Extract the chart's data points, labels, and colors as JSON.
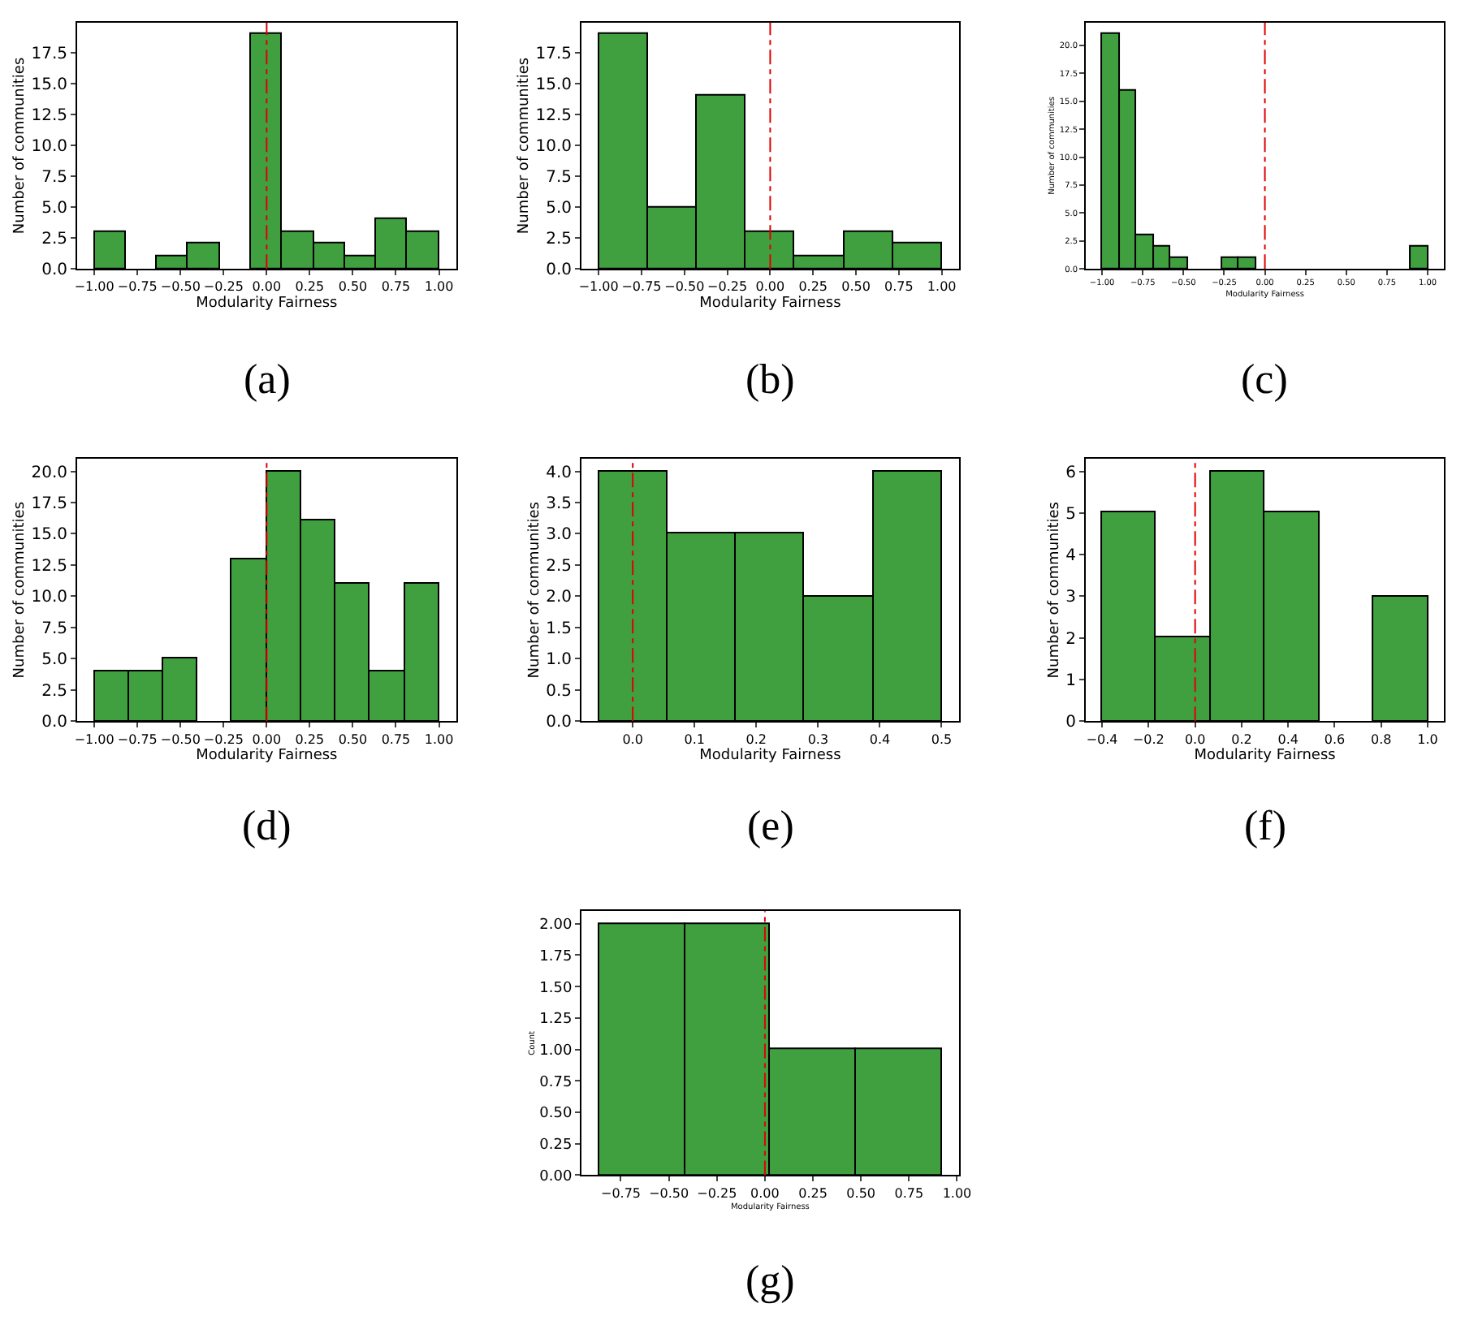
{
  "chart_data": [
    {
      "type": "histogram",
      "title": "(a)",
      "xlabel": "Modularity Fairness",
      "ylabel": "Number of communities",
      "color": "#40a040",
      "bins": [
        -1,
        -0.818,
        -0.636,
        -0.455,
        -0.273,
        -0.091,
        0.091,
        0.273,
        0.455,
        0.636,
        0.818,
        1
      ],
      "values": [
        3,
        0,
        1,
        2,
        0,
        19,
        3,
        2,
        1,
        4,
        3
      ],
      "xlim": [
        -1.1,
        1.1
      ],
      "ylim": [
        0,
        19.95
      ],
      "xticks": [
        {
          "value": -1,
          "label": "−1.00"
        },
        {
          "value": -0.75,
          "label": "−0.75"
        },
        {
          "value": -0.5,
          "label": "−0.50"
        },
        {
          "value": -0.25,
          "label": "−0.25"
        },
        {
          "value": 0,
          "label": "0.00"
        },
        {
          "value": 0.25,
          "label": "0.25"
        },
        {
          "value": 0.5,
          "label": "0.50"
        },
        {
          "value": 0.75,
          "label": "0.75"
        },
        {
          "value": 1,
          "label": "1.00"
        }
      ],
      "yticks": [
        {
          "value": 0,
          "label": "0.0"
        },
        2.5,
        {
          "value": 5,
          "label": "5.0"
        },
        7.5,
        {
          "value": 10,
          "label": "10.0"
        },
        12.5,
        {
          "value": 15,
          "label": "15.0"
        },
        17.5
      ],
      "ref_lines": [
        {
          "axis": "x",
          "value": 0,
          "color": "#e00000",
          "line_style": "dashed"
        }
      ]
    },
    {
      "type": "histogram",
      "title": "(b)",
      "xlabel": "Modularity Fairness",
      "ylabel": "Number of communities",
      "color": "#40a040",
      "bins": [
        -1,
        -0.714,
        -0.429,
        -0.143,
        0.143,
        0.429,
        0.714,
        1
      ],
      "values": [
        19,
        5,
        14,
        3,
        1,
        3,
        2
      ],
      "xlim": [
        -1.1,
        1.1
      ],
      "ylim": [
        0,
        19.95
      ],
      "xticks": [
        {
          "value": -1,
          "label": "−1.00"
        },
        {
          "value": -0.75,
          "label": "−0.75"
        },
        {
          "value": -0.5,
          "label": "−0.50"
        },
        {
          "value": -0.25,
          "label": "−0.25"
        },
        {
          "value": 0,
          "label": "0.00"
        },
        {
          "value": 0.25,
          "label": "0.25"
        },
        {
          "value": 0.5,
          "label": "0.50"
        },
        {
          "value": 0.75,
          "label": "0.75"
        },
        {
          "value": 1,
          "label": "1.00"
        }
      ],
      "yticks": [
        {
          "value": 0,
          "label": "0.0"
        },
        2.5,
        {
          "value": 5,
          "label": "5.0"
        },
        7.5,
        {
          "value": 10,
          "label": "10.0"
        },
        12.5,
        {
          "value": 15,
          "label": "15.0"
        },
        17.5
      ],
      "ref_lines": [
        {
          "axis": "x",
          "value": 0,
          "color": "#e00000",
          "line_style": "dashed"
        }
      ]
    },
    {
      "type": "histogram",
      "title": "(c)",
      "xlabel": "Modularity Fairness",
      "ylabel": "Number of communities",
      "color": "#40a040",
      "bins": [
        -1,
        -0.895,
        -0.789,
        -0.684,
        -0.579,
        -0.474,
        -0.368,
        -0.263,
        -0.158,
        -0.053,
        0.053,
        0.158,
        0.263,
        0.368,
        0.474,
        0.579,
        0.684,
        0.789,
        0.895,
        1
      ],
      "values": [
        21,
        16,
        3,
        2,
        1,
        0,
        0,
        1,
        1,
        0,
        0,
        0,
        0,
        0,
        0,
        0,
        0,
        0,
        2
      ],
      "xlim": [
        -1.1,
        1.1
      ],
      "ylim": [
        0,
        22.05
      ],
      "xticks": [
        {
          "value": -1,
          "label": "−1.00"
        },
        {
          "value": -0.75,
          "label": "−0.75"
        },
        {
          "value": -0.5,
          "label": "−0.50"
        },
        {
          "value": -0.25,
          "label": "−0.25"
        },
        {
          "value": 0,
          "label": "0.00"
        },
        {
          "value": 0.25,
          "label": "0.25"
        },
        {
          "value": 0.5,
          "label": "0.50"
        },
        {
          "value": 0.75,
          "label": "0.75"
        },
        {
          "value": 1,
          "label": "1.00"
        }
      ],
      "yticks": [
        {
          "value": 0,
          "label": "0.0"
        },
        2.5,
        {
          "value": 5,
          "label": "5.0"
        },
        7.5,
        {
          "value": 10,
          "label": "10.0"
        },
        12.5,
        {
          "value": 15,
          "label": "15.0"
        },
        17.5,
        {
          "value": 20,
          "label": "20.0"
        }
      ],
      "ref_lines": [
        {
          "axis": "x",
          "value": 0,
          "color": "#e00000",
          "line_style": "dashed"
        }
      ]
    },
    {
      "type": "histogram",
      "title": "(d)",
      "xlabel": "Modularity Fairness",
      "ylabel": "Number of communities",
      "color": "#40a040",
      "bins": [
        -1,
        -0.8,
        -0.6,
        -0.4,
        -0.2,
        0,
        0.2,
        0.4,
        0.6,
        0.8,
        1
      ],
      "values": [
        4,
        4,
        5,
        0,
        13,
        20,
        16,
        11,
        4,
        11
      ],
      "xlim": [
        -1.1,
        1.1
      ],
      "ylim": [
        0,
        21
      ],
      "xticks": [
        {
          "value": -1,
          "label": "−1.00"
        },
        {
          "value": -0.75,
          "label": "−0.75"
        },
        {
          "value": -0.5,
          "label": "−0.50"
        },
        {
          "value": -0.25,
          "label": "−0.25"
        },
        {
          "value": 0,
          "label": "0.00"
        },
        {
          "value": 0.25,
          "label": "0.25"
        },
        {
          "value": 0.5,
          "label": "0.50"
        },
        {
          "value": 0.75,
          "label": "0.75"
        },
        {
          "value": 1,
          "label": "1.00"
        }
      ],
      "yticks": [
        {
          "value": 0,
          "label": "0.0"
        },
        2.5,
        {
          "value": 5,
          "label": "5.0"
        },
        7.5,
        {
          "value": 10,
          "label": "10.0"
        },
        12.5,
        {
          "value": 15,
          "label": "15.0"
        },
        17.5,
        {
          "value": 20,
          "label": "20.0"
        }
      ],
      "ref_lines": [
        {
          "axis": "x",
          "value": 0,
          "color": "#e00000",
          "line_style": "dashed"
        }
      ]
    },
    {
      "type": "histogram",
      "title": "(e)",
      "xlabel": "Modularity Fairness",
      "ylabel": "Number of communities",
      "color": "#40a040",
      "bins": [
        -0.055,
        0.056,
        0.167,
        0.278,
        0.389,
        0.5
      ],
      "values": [
        4,
        3,
        3,
        2,
        4
      ],
      "xlim": [
        -0.083,
        0.528
      ],
      "ylim": [
        0,
        4.2
      ],
      "xticks": [
        {
          "value": 0,
          "label": "0.0"
        },
        0.1,
        0.2,
        0.3,
        0.4,
        0.5
      ],
      "yticks": [
        {
          "value": 0,
          "label": "0.0"
        },
        0.5,
        {
          "value": 1,
          "label": "1.0"
        },
        1.5,
        {
          "value": 2,
          "label": "2.0"
        },
        2.5,
        {
          "value": 3,
          "label": "3.0"
        },
        3.5,
        {
          "value": 4,
          "label": "4.0"
        }
      ],
      "ref_lines": [
        {
          "axis": "x",
          "value": 0,
          "color": "#e00000",
          "line_style": "dashed"
        }
      ]
    },
    {
      "type": "histogram",
      "title": "(f)",
      "xlabel": "Modularity Fairness",
      "ylabel": "Number of communities",
      "color": "#40a040",
      "bins": [
        -0.4,
        -0.167,
        0.067,
        0.3,
        0.533,
        0.767,
        1
      ],
      "values": [
        5,
        2,
        6,
        5,
        0,
        3
      ],
      "xlim": [
        -0.47,
        1.07
      ],
      "ylim": [
        0,
        6.3
      ],
      "xticks": [
        {
          "value": -0.4,
          "label": "−0.4"
        },
        {
          "value": -0.2,
          "label": "−0.2"
        },
        {
          "value": 0,
          "label": "0.0"
        },
        0.2,
        0.4,
        0.6,
        0.8,
        {
          "value": 1,
          "label": "1.0"
        }
      ],
      "yticks": [
        0,
        1,
        2,
        3,
        4,
        5,
        6
      ],
      "ref_lines": [
        {
          "axis": "x",
          "value": 0,
          "color": "#e00000",
          "line_style": "dashed"
        }
      ]
    },
    {
      "type": "histogram",
      "title": "(g)",
      "xlabel": "Modularity Fairness",
      "ylabel": "Count",
      "color": "#40a040",
      "bins": [
        -0.865,
        -0.415,
        0.03,
        0.475,
        0.92
      ],
      "values": [
        2,
        2,
        1,
        1
      ],
      "xlim": [
        -0.955,
        1.01
      ],
      "ylim": [
        0,
        2.1
      ],
      "xticks": [
        {
          "value": -0.75,
          "label": "−0.75"
        },
        {
          "value": -0.5,
          "label": "−0.50"
        },
        {
          "value": -0.25,
          "label": "−0.25"
        },
        {
          "value": 0,
          "label": "0.00"
        },
        {
          "value": 0.25,
          "label": "0.25"
        },
        {
          "value": 0.5,
          "label": "0.50"
        },
        {
          "value": 0.75,
          "label": "0.75"
        },
        {
          "value": 1,
          "label": "1.00"
        }
      ],
      "yticks": [
        {
          "value": 0,
          "label": "0.00"
        },
        0.25,
        {
          "value": 0.5,
          "label": "0.50"
        },
        0.75,
        {
          "value": 1,
          "label": "1.00"
        },
        1.25,
        {
          "value": 1.5,
          "label": "1.50"
        },
        1.75,
        {
          "value": 2,
          "label": "2.00"
        }
      ],
      "ref_lines": [
        {
          "axis": "x",
          "value": 0,
          "color": "#e00000",
          "line_style": "dashed"
        }
      ]
    }
  ]
}
